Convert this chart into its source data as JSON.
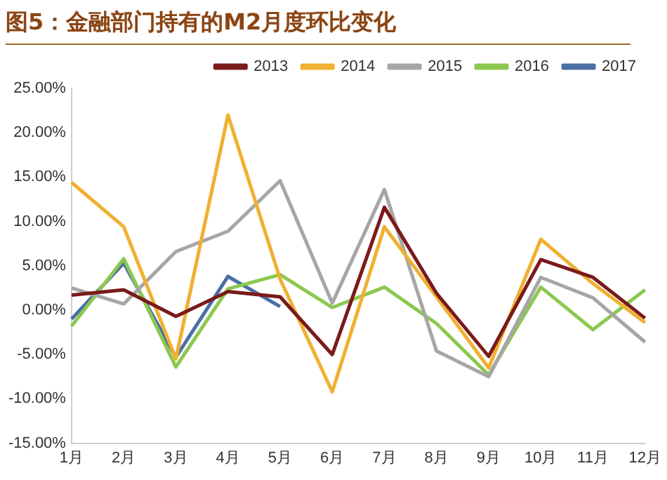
{
  "chart_data": {
    "type": "line",
    "title": "图5：金融部门持有的M2月度环比变化",
    "categories": [
      "1月",
      "2月",
      "3月",
      "4月",
      "5月",
      "6月",
      "7月",
      "8月",
      "9月",
      "10月",
      "11月",
      "12月"
    ],
    "series": [
      {
        "name": "2013",
        "color": "#7b1a1a",
        "values": [
          1.7,
          2.3,
          -0.7,
          2.1,
          1.5,
          -5.0,
          11.6,
          1.9,
          -5.2,
          5.7,
          3.7,
          -0.9
        ]
      },
      {
        "name": "2014",
        "color": "#f0b030",
        "values": [
          14.4,
          9.4,
          -5.5,
          22.0,
          3.5,
          -9.2,
          9.4,
          1.5,
          -6.5,
          8.0,
          3.0,
          -1.4
        ]
      },
      {
        "name": "2015",
        "color": "#a6a6a6",
        "values": [
          2.5,
          0.7,
          6.6,
          8.9,
          14.6,
          0.8,
          13.6,
          -4.6,
          -7.5,
          3.7,
          1.4,
          -3.6
        ]
      },
      {
        "name": "2016",
        "color": "#8cc850",
        "values": [
          -1.8,
          5.8,
          -6.4,
          2.4,
          4.0,
          0.3,
          2.6,
          -1.5,
          -7.3,
          2.6,
          -2.2,
          2.3
        ]
      },
      {
        "name": "2017",
        "color": "#4a6fa5",
        "values": [
          -1.0,
          5.3,
          -5.3,
          3.8,
          0.4,
          null,
          null,
          null,
          null,
          null,
          null,
          null
        ]
      }
    ],
    "ylim": [
      -15,
      25
    ],
    "yticks": [
      {
        "value": -15,
        "label": "-15.00%"
      },
      {
        "value": -10,
        "label": "-10.00%"
      },
      {
        "value": -5,
        "label": "-5.00%"
      },
      {
        "value": 0,
        "label": "0.00%"
      },
      {
        "value": 5,
        "label": "5.00%"
      },
      {
        "value": 10,
        "label": "10.00%"
      },
      {
        "value": 15,
        "label": "15.00%"
      },
      {
        "value": 20,
        "label": "20.00%"
      },
      {
        "value": 25,
        "label": "25.00%"
      }
    ],
    "grid": false,
    "legend": "top",
    "marker": "none",
    "line_style": "solid"
  }
}
